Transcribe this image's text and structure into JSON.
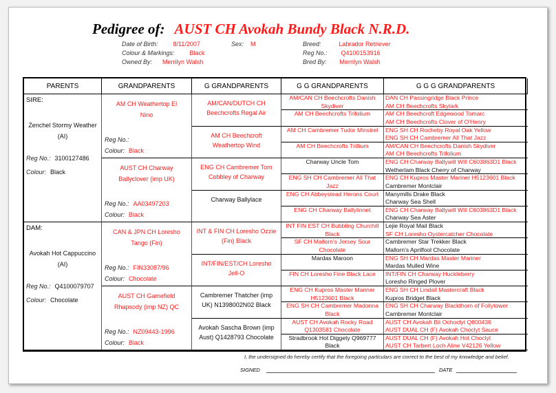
{
  "header": {
    "label": "Pedigree of:",
    "dog_name": "AUST CH Avokah Bundy Black N.R.D."
  },
  "info": {
    "dob_label": "Date of Birth:",
    "dob": "8/11/2007",
    "sex_label": "Sex:",
    "sex": "M",
    "breed_label": "Breed:",
    "breed": "Labrador Retriever",
    "colour_label": "Colour & Markings:",
    "colour": "Black",
    "reg_label": "Reg No.:",
    "reg": "Q4100153916",
    "owned_label": "Owned By:",
    "owned": "Merrilyn Walsh",
    "bred_label": "Bred By:",
    "bred": "Merrilyn Walsh"
  },
  "columns": [
    "PARENTS",
    "GRANDPARENTS",
    "G GRANDPARENTS",
    "G G GRANDPARENTS",
    "G G G GRANDPARENTS"
  ],
  "labels": {
    "reg": "Reg No.:",
    "colour": "Colour:"
  },
  "parents": [
    {
      "label": "SIRE:",
      "name": "Zenchel Stormy Weather (AI)",
      "reg_no": "3100127486",
      "colour": "Black"
    },
    {
      "label": "DAM:",
      "name": "Avokah Hot Cappuccino (AI)",
      "reg_no": "Q4100079707",
      "colour": "Chocolate"
    }
  ],
  "grandparents": [
    {
      "name": "AM CH Weathertop El Nino",
      "reg_no": "",
      "colour": "Black"
    },
    {
      "name": "AUST CH Charway Ballyclover (imp UK)",
      "reg_no": "AA03497203",
      "colour": "Black"
    },
    {
      "name": "CAN & JPN CH Loresho Tango (Fin)",
      "reg_no": "FIN33087/96",
      "colour": "Chocolate"
    },
    {
      "name": "AUST CH Gamefield Rhapsody (imp NZ) QC",
      "reg_no": "NZ09443-1996",
      "colour": "Black"
    }
  ],
  "g_grandparents": [
    {
      "name": "AM/CAN/DUTCH CH Beechcrofts Regal Air",
      "red": true
    },
    {
      "name": "AM CH Beechcroft Weathertop Wind",
      "red": true
    },
    {
      "name": "ENG CH Cambremer Tom Cobbley of Charway",
      "red": true
    },
    {
      "name": "Charway Ballylace",
      "red": false
    },
    {
      "name": "INT & FIN CH Loresho Ozzie (Fin) Black",
      "red": true
    },
    {
      "name": "INT/FIN/EST/CH Loresho Jell-O",
      "red": true
    },
    {
      "name": "Cambremer Thatcher (imp UK) N1398002N02 Black",
      "red": false
    },
    {
      "name": "Avokah Sascha Brown (imp Aust) Q1428793 Chocolate",
      "red": false
    }
  ],
  "gg_grandparents": [
    {
      "name": "AM/CAN CH Beechcrofts Danish Skydiver",
      "red": true
    },
    {
      "name": "AM CH Beechcrofts Trifolium",
      "red": true
    },
    {
      "name": "AM CH Cambremer Tudor Minstrel",
      "red": true
    },
    {
      "name": "AM CH Beechcrofts Trillium",
      "red": true
    },
    {
      "name": "Charway Uncle Tom",
      "red": false
    },
    {
      "name": "ENG SH CH Cambremer All That Jazz",
      "red": true
    },
    {
      "name": "ENG CH Abbeystead Herons Court",
      "red": true
    },
    {
      "name": "ENG CH Charway Ballylinnet",
      "red": true
    },
    {
      "name": "INT FIN EST CH Bubbling Churchill Black",
      "red": true
    },
    {
      "name": "SF CH Mallorn's Jersey Sour Chocolate",
      "red": true
    },
    {
      "name": "Mardas Maroon",
      "red": false
    },
    {
      "name": "FIN CH Loresho Fine Black Lace",
      "red": true
    },
    {
      "name": "ENG CH Kupros Master Mariner H5123601 Black",
      "red": true
    },
    {
      "name": "ENG SH CH Cambremer Madonna Black",
      "red": true
    },
    {
      "name": "AUST CH Avokah Rocky Road Q1303581 Chocolate",
      "red": true
    },
    {
      "name": "Stradbrook Hot Diggety Q969777 Black",
      "red": false
    }
  ],
  "ggg_grandparents": [
    [
      {
        "name": "DAN CH Passingridge Black Prince",
        "red": true
      },
      {
        "name": "AM CH Beechcrofts Skylark",
        "red": true
      }
    ],
    [
      {
        "name": "AM CH Beechcroft Edgewood Tomarc",
        "red": true
      },
      {
        "name": "AM CH Beechcrofts Clover of O'Henry",
        "red": true
      }
    ],
    [
      {
        "name": "ENG SH CH Rocheby Royal Oak Yellow",
        "red": true
      },
      {
        "name": "ENG SH CH Cambremer All That Jazz",
        "red": true
      }
    ],
    [
      {
        "name": "AM/CAN CH Beechcrofts Danish Skydiver",
        "red": true
      },
      {
        "name": "AM CH Beechcrofts Trifolium",
        "red": true
      }
    ],
    [
      {
        "name": "ENG CH Charway Ballywill Will C603863D1 Black",
        "red": true
      },
      {
        "name": "Wetherlam Black Cherry of Charway",
        "red": false
      }
    ],
    [
      {
        "name": "ENG CH Kupros Master Mariner H5123601 Black",
        "red": true
      },
      {
        "name": "Cambremer Montclair",
        "red": false
      }
    ],
    [
      {
        "name": "Manymills Drake Black",
        "red": false
      },
      {
        "name": "Charway Sea Shell",
        "red": false
      }
    ],
    [
      {
        "name": "ENG CH Charway Ballywill Will C603863D1 Black",
        "red": true
      },
      {
        "name": "Charway Sea Aster",
        "red": false
      }
    ],
    [
      {
        "name": "Lejie Royal Mail Black",
        "red": false
      },
      {
        "name": "SF CH Loresho Oystercatcher Chocolate",
        "red": true
      }
    ],
    [
      {
        "name": "Cambremer Star Trekker Black",
        "red": false
      },
      {
        "name": "Mallorn's Aprilfool Chocolate",
        "red": false
      }
    ],
    [
      {
        "name": "ENG SH CH Mardas Master Mariner",
        "red": true
      },
      {
        "name": "Mardas Mulled Wine",
        "red": false
      }
    ],
    [
      {
        "name": "INT/FIN CH Charway Huckleberry",
        "red": true
      },
      {
        "name": "Loresho Ringed Plover",
        "red": false
      }
    ],
    [
      {
        "name": "ENG SH CH Lindall Mastercraft Black",
        "red": true
      },
      {
        "name": "Kupros Bridget Black",
        "red": false
      }
    ],
    [
      {
        "name": "ENG SH CH Charway Blackthorn of Follytower",
        "red": true
      },
      {
        "name": "Cambremer Montclair",
        "red": false
      }
    ],
    [
      {
        "name": "AUST CH Avokah Bit Ochoclyt Q800436",
        "red": true
      },
      {
        "name": "AUST DUAL CH (F) Avokah Choclyt Sauce",
        "red": true
      }
    ],
    [
      {
        "name": "AUST DUAL CH (F) Avokah Hot Choclyt",
        "red": true
      },
      {
        "name": "AUST CH Tarbert Loch Aline V42126 Yellow",
        "red": true
      }
    ]
  ],
  "footer": {
    "certification": "I, the undersigned do hereby certify that the foregoing particulars are correct to the best of my knowledge and belief.",
    "signed_label": "SIGNED",
    "date_label": "DATE"
  },
  "colors": {
    "accent": "#ff1a1a",
    "text": "#111111"
  }
}
